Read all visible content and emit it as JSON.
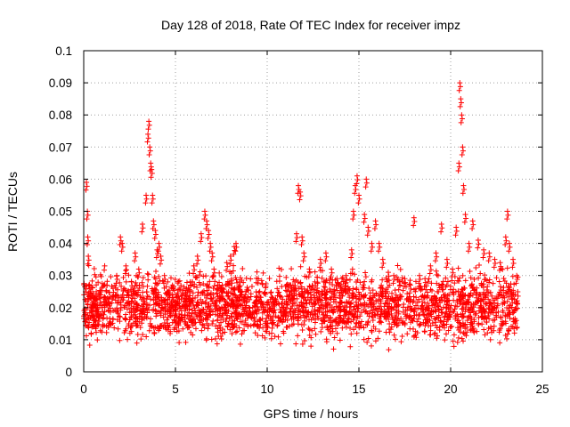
{
  "chart_data": {
    "type": "scatter",
    "title": "Day 128 of 2018, Rate Of TEC Index for receiver impz",
    "xlabel": "GPS time / hours",
    "ylabel": "ROTI / TECUs",
    "xlim": [
      0,
      25
    ],
    "ylim": [
      0,
      0.1
    ],
    "x_ticks": [
      0,
      5,
      10,
      15,
      20,
      25
    ],
    "x_tick_labels": [
      "0",
      "5",
      "10",
      "15",
      "20",
      "25"
    ],
    "y_ticks": [
      0,
      0.01,
      0.02,
      0.03,
      0.04,
      0.05,
      0.06,
      0.07,
      0.08,
      0.09,
      0.1
    ],
    "y_tick_labels": [
      "0",
      "0.01",
      "0.02",
      "0.03",
      "0.04",
      "0.05",
      "0.06",
      "0.07",
      "0.08",
      "0.09",
      "0.1"
    ],
    "grid": true,
    "marker": "+",
    "marker_color": "#ff0000",
    "series": [
      {
        "name": "ROTI",
        "x": [
          0.1,
          0.15,
          0.2,
          0.22,
          0.25,
          0.3,
          0.5,
          0.8,
          1.0,
          1.3,
          1.6,
          1.8,
          2.0,
          2.1,
          2.3,
          2.6,
          2.8,
          3.0,
          3.2,
          3.4,
          3.5,
          3.55,
          3.6,
          3.65,
          3.7,
          3.75,
          3.8,
          3.9,
          4.0,
          4.1,
          4.2,
          4.4,
          4.6,
          4.8,
          5.0,
          5.2,
          5.5,
          5.8,
          6.0,
          6.2,
          6.4,
          6.6,
          6.7,
          6.8,
          6.9,
          7.0,
          7.1,
          7.3,
          7.5,
          7.8,
          8.0,
          8.2,
          8.3,
          8.5,
          8.8,
          9.0,
          9.3,
          9.6,
          10.0,
          10.3,
          10.6,
          10.9,
          11.2,
          11.5,
          11.6,
          11.7,
          11.8,
          11.9,
          12.0,
          12.3,
          12.6,
          12.9,
          13.2,
          13.5,
          13.8,
          14.0,
          14.3,
          14.6,
          14.7,
          14.8,
          14.9,
          15.0,
          15.3,
          15.4,
          15.5,
          15.7,
          15.9,
          16.1,
          16.3,
          16.6,
          16.9,
          17.2,
          17.5,
          17.8,
          18.0,
          18.3,
          18.6,
          18.9,
          19.2,
          19.5,
          19.8,
          20.1,
          20.3,
          20.45,
          20.5,
          20.55,
          20.6,
          20.65,
          20.7,
          20.8,
          21.0,
          21.2,
          21.5,
          21.8,
          22.1,
          22.4,
          22.7,
          23.0,
          23.1,
          23.2,
          23.4,
          23.6
        ],
        "y": [
          0.018,
          0.059,
          0.05,
          0.042,
          0.036,
          0.027,
          0.021,
          0.017,
          0.02,
          0.023,
          0.026,
          0.03,
          0.042,
          0.04,
          0.033,
          0.028,
          0.037,
          0.032,
          0.046,
          0.055,
          0.074,
          0.078,
          0.07,
          0.065,
          0.063,
          0.055,
          0.047,
          0.044,
          0.038,
          0.04,
          0.036,
          0.03,
          0.025,
          0.022,
          0.02,
          0.018,
          0.023,
          0.028,
          0.033,
          0.036,
          0.043,
          0.05,
          0.047,
          0.044,
          0.04,
          0.037,
          0.032,
          0.027,
          0.026,
          0.034,
          0.036,
          0.039,
          0.04,
          0.028,
          0.024,
          0.02,
          0.017,
          0.016,
          0.015,
          0.016,
          0.017,
          0.02,
          0.025,
          0.028,
          0.043,
          0.058,
          0.056,
          0.042,
          0.037,
          0.032,
          0.028,
          0.035,
          0.037,
          0.032,
          0.029,
          0.026,
          0.03,
          0.038,
          0.05,
          0.058,
          0.061,
          0.055,
          0.049,
          0.06,
          0.045,
          0.04,
          0.047,
          0.04,
          0.035,
          0.031,
          0.03,
          0.028,
          0.029,
          0.027,
          0.048,
          0.03,
          0.029,
          0.033,
          0.037,
          0.046,
          0.035,
          0.032,
          0.045,
          0.065,
          0.09,
          0.085,
          0.08,
          0.07,
          0.058,
          0.049,
          0.04,
          0.047,
          0.041,
          0.038,
          0.037,
          0.035,
          0.034,
          0.042,
          0.05,
          0.04,
          0.035,
          0.03
        ]
      }
    ],
    "dense_band": {
      "x_start": 0,
      "x_end": 23.7,
      "y_min": 0.006,
      "y_max": 0.035,
      "y_center": 0.019
    }
  }
}
